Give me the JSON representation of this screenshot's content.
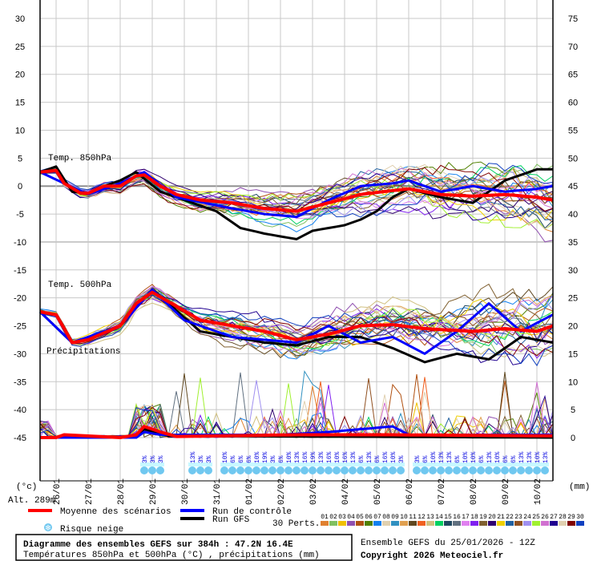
{
  "chart_data": {
    "type": "line",
    "title": "Diagramme des ensembles GEFS sur 384h : 47.2N 16.4E",
    "subtitle": "Températures 850hPa et 500hPa (°C) , précipitations (mm)",
    "run_info": "Ensemble GEFS du 25/01/2026 - 12Z",
    "copyright": "Copyright 2026 Meteociel.fr",
    "altitude": "Alt. 289m",
    "left_unit": "(°c)",
    "right_unit": "(mm)",
    "left_axis": {
      "range": [
        -45,
        30
      ],
      "ticks": [
        "30",
        "25",
        "20",
        "15",
        "10",
        "5",
        "0",
        "-5",
        "-10",
        "-15",
        "-20",
        "-25",
        "-30",
        "-35",
        "-40",
        "-45"
      ]
    },
    "right_axis": {
      "range": [
        0,
        75
      ],
      "ticks": [
        "75",
        "70",
        "65",
        "60",
        "55",
        "50",
        "45",
        "40",
        "35",
        "30",
        "25",
        "20",
        "15",
        "10",
        "5",
        "0"
      ]
    },
    "x_start": "25/01 12Z",
    "x_hours": [
      0,
      384
    ],
    "date_labels": [
      "26/01",
      "27/01",
      "28/01",
      "29/01",
      "30/01",
      "31/01",
      "01/02",
      "02/02",
      "03/02",
      "04/02",
      "05/02",
      "06/02",
      "07/02",
      "08/02",
      "09/02",
      "10/02"
    ],
    "panel_labels": {
      "t850": "Temp. 850hPa",
      "t500": "Temp. 500hPa",
      "precip": "Précipitations"
    },
    "series": [
      {
        "name": "Moyenne des scénarios",
        "key": "mean",
        "color": "#ff0000",
        "t850": [
          [
            0,
            2.5
          ],
          [
            12,
            2.8
          ],
          [
            18,
            0.5
          ],
          [
            30,
            -1.2
          ],
          [
            36,
            -1.3
          ],
          [
            48,
            0
          ],
          [
            60,
            0
          ],
          [
            72,
            1.8
          ],
          [
            78,
            2
          ],
          [
            90,
            0
          ],
          [
            102,
            -1.5
          ],
          [
            120,
            -2.5
          ],
          [
            144,
            -3
          ],
          [
            168,
            -4
          ],
          [
            192,
            -4.5
          ],
          [
            216,
            -3
          ],
          [
            240,
            -1.5
          ],
          [
            264,
            -0.8
          ],
          [
            276,
            -0.5
          ],
          [
            300,
            -1.5
          ],
          [
            324,
            -1.8
          ],
          [
            348,
            -1.5
          ],
          [
            372,
            -2
          ],
          [
            384,
            -2.5
          ]
        ],
        "t500": [
          [
            0,
            -22.5
          ],
          [
            12,
            -23
          ],
          [
            24,
            -28
          ],
          [
            36,
            -27.5
          ],
          [
            60,
            -25
          ],
          [
            72,
            -21
          ],
          [
            84,
            -19
          ],
          [
            102,
            -21.5
          ],
          [
            120,
            -24
          ],
          [
            144,
            -25
          ],
          [
            168,
            -26
          ],
          [
            192,
            -27.5
          ],
          [
            216,
            -26.5
          ],
          [
            240,
            -25
          ],
          [
            264,
            -24.8
          ],
          [
            288,
            -25.5
          ],
          [
            324,
            -26
          ],
          [
            348,
            -25.5
          ],
          [
            372,
            -26
          ],
          [
            384,
            -25
          ]
        ],
        "precip": [
          [
            0,
            0
          ],
          [
            12,
            0
          ],
          [
            18,
            0.5
          ],
          [
            60,
            0
          ],
          [
            72,
            0.5
          ],
          [
            78,
            2
          ],
          [
            90,
            1
          ],
          [
            102,
            0.2
          ],
          [
            192,
            0.5
          ],
          [
            264,
            0.5
          ],
          [
            384,
            0.3
          ]
        ]
      },
      {
        "name": "Run de contrôle",
        "key": "control",
        "color": "#0000ff",
        "t850": [
          [
            0,
            2.5
          ],
          [
            18,
            0.5
          ],
          [
            36,
            -1.5
          ],
          [
            60,
            0.5
          ],
          [
            78,
            2.5
          ],
          [
            102,
            -2
          ],
          [
            144,
            -4
          ],
          [
            168,
            -5
          ],
          [
            192,
            -5.5
          ],
          [
            216,
            -2.5
          ],
          [
            240,
            0
          ],
          [
            264,
            0.5
          ],
          [
            276,
            1
          ],
          [
            300,
            -1
          ],
          [
            324,
            0
          ],
          [
            348,
            -1
          ],
          [
            372,
            -0.5
          ],
          [
            384,
            0
          ]
        ],
        "t500": [
          [
            0,
            -22.5
          ],
          [
            24,
            -28
          ],
          [
            60,
            -25
          ],
          [
            84,
            -18.5
          ],
          [
            108,
            -24
          ],
          [
            144,
            -27
          ],
          [
            192,
            -28
          ],
          [
            216,
            -25
          ],
          [
            240,
            -28
          ],
          [
            264,
            -27
          ],
          [
            288,
            -30
          ],
          [
            312,
            -26
          ],
          [
            336,
            -21
          ],
          [
            360,
            -26
          ],
          [
            384,
            -23
          ]
        ],
        "precip": [
          [
            0,
            0
          ],
          [
            72,
            0
          ],
          [
            78,
            1
          ],
          [
            90,
            0.5
          ],
          [
            180,
            0.5
          ],
          [
            216,
            1
          ],
          [
            264,
            2
          ],
          [
            276,
            0.5
          ],
          [
            384,
            0.5
          ]
        ]
      },
      {
        "name": "Run GFS",
        "key": "gfs",
        "color": "#000000",
        "t850": [
          [
            0,
            2.5
          ],
          [
            12,
            3.5
          ],
          [
            24,
            -1
          ],
          [
            36,
            -1.3
          ],
          [
            48,
            0
          ],
          [
            60,
            1
          ],
          [
            72,
            2.5
          ],
          [
            90,
            -1
          ],
          [
            102,
            -2
          ],
          [
            120,
            -3.5
          ],
          [
            132,
            -4.5
          ],
          [
            150,
            -7.5
          ],
          [
            168,
            -8.5
          ],
          [
            192,
            -9.5
          ],
          [
            204,
            -8
          ],
          [
            228,
            -7
          ],
          [
            240,
            -6
          ],
          [
            252,
            -4.5
          ],
          [
            264,
            -2
          ],
          [
            276,
            -0.5
          ],
          [
            300,
            -2
          ],
          [
            324,
            -3
          ],
          [
            348,
            1
          ],
          [
            372,
            3
          ],
          [
            384,
            3
          ]
        ],
        "t500": [
          [
            0,
            -22.5
          ],
          [
            24,
            -28
          ],
          [
            60,
            -25
          ],
          [
            84,
            -18.5
          ],
          [
            120,
            -26
          ],
          [
            168,
            -28
          ],
          [
            192,
            -28.5
          ],
          [
            216,
            -27
          ],
          [
            240,
            -27
          ],
          [
            264,
            -29
          ],
          [
            288,
            -31.5
          ],
          [
            312,
            -30
          ],
          [
            336,
            -31
          ],
          [
            360,
            -27
          ],
          [
            384,
            -28
          ]
        ],
        "precip": [
          [
            0,
            0
          ],
          [
            72,
            0
          ],
          [
            78,
            1.5
          ],
          [
            96,
            0.3
          ],
          [
            384,
            0
          ]
        ]
      }
    ],
    "perturbations": {
      "label": "30 Perts.",
      "members": [
        "01",
        "02",
        "03",
        "04",
        "05",
        "06",
        "07",
        "08",
        "09",
        "10",
        "11",
        "12",
        "13",
        "14",
        "15",
        "16",
        "17",
        "18",
        "19",
        "20",
        "21",
        "22",
        "23",
        "24",
        "25",
        "26",
        "27",
        "28",
        "29",
        "30"
      ],
      "colors": [
        "#e08030",
        "#80c060",
        "#f0c000",
        "#9050b0",
        "#b05010",
        "#508000",
        "#1080f0",
        "#e0d0b0",
        "#3090c0",
        "#e0a050",
        "#604820",
        "#f06020",
        "#d0c080",
        "#00d060",
        "#204860",
        "#607080",
        "#e080f0",
        "#8020f0",
        "#806030",
        "#300070",
        "#f0d000",
        "#2060a0",
        "#905020",
        "#a090f0",
        "#a0f030",
        "#d070d0",
        "#200090",
        "#e0d0b0",
        "#800000",
        "#1040c0"
      ]
    },
    "snow_risk": {
      "label": "Risque neige",
      "groups": [
        {
          "start_hour": 78,
          "values": [
            "3%",
            "3%",
            "3%"
          ]
        },
        {
          "start_hour": 114,
          "values": [
            "13%",
            "3%",
            "3%"
          ]
        },
        {
          "start_hour": 138,
          "values": [
            "10%",
            "6%",
            "6%",
            "6%",
            "10%",
            "19%",
            "3%",
            "6%",
            "10%",
            "13%",
            "16%",
            "19%",
            "13%",
            "16%",
            "10%",
            "16%",
            "13%",
            "6%",
            "13%",
            "6%",
            "16%",
            "10%",
            "3%"
          ]
        },
        {
          "start_hour": 282,
          "values": [
            "3%",
            "6%",
            "10%",
            "13%",
            "13%",
            "6%",
            "10%",
            "10%",
            "6%",
            "13%",
            "10%",
            "6%",
            "6%",
            "13%",
            "13%",
            "10%",
            "13%"
          ]
        }
      ]
    }
  }
}
